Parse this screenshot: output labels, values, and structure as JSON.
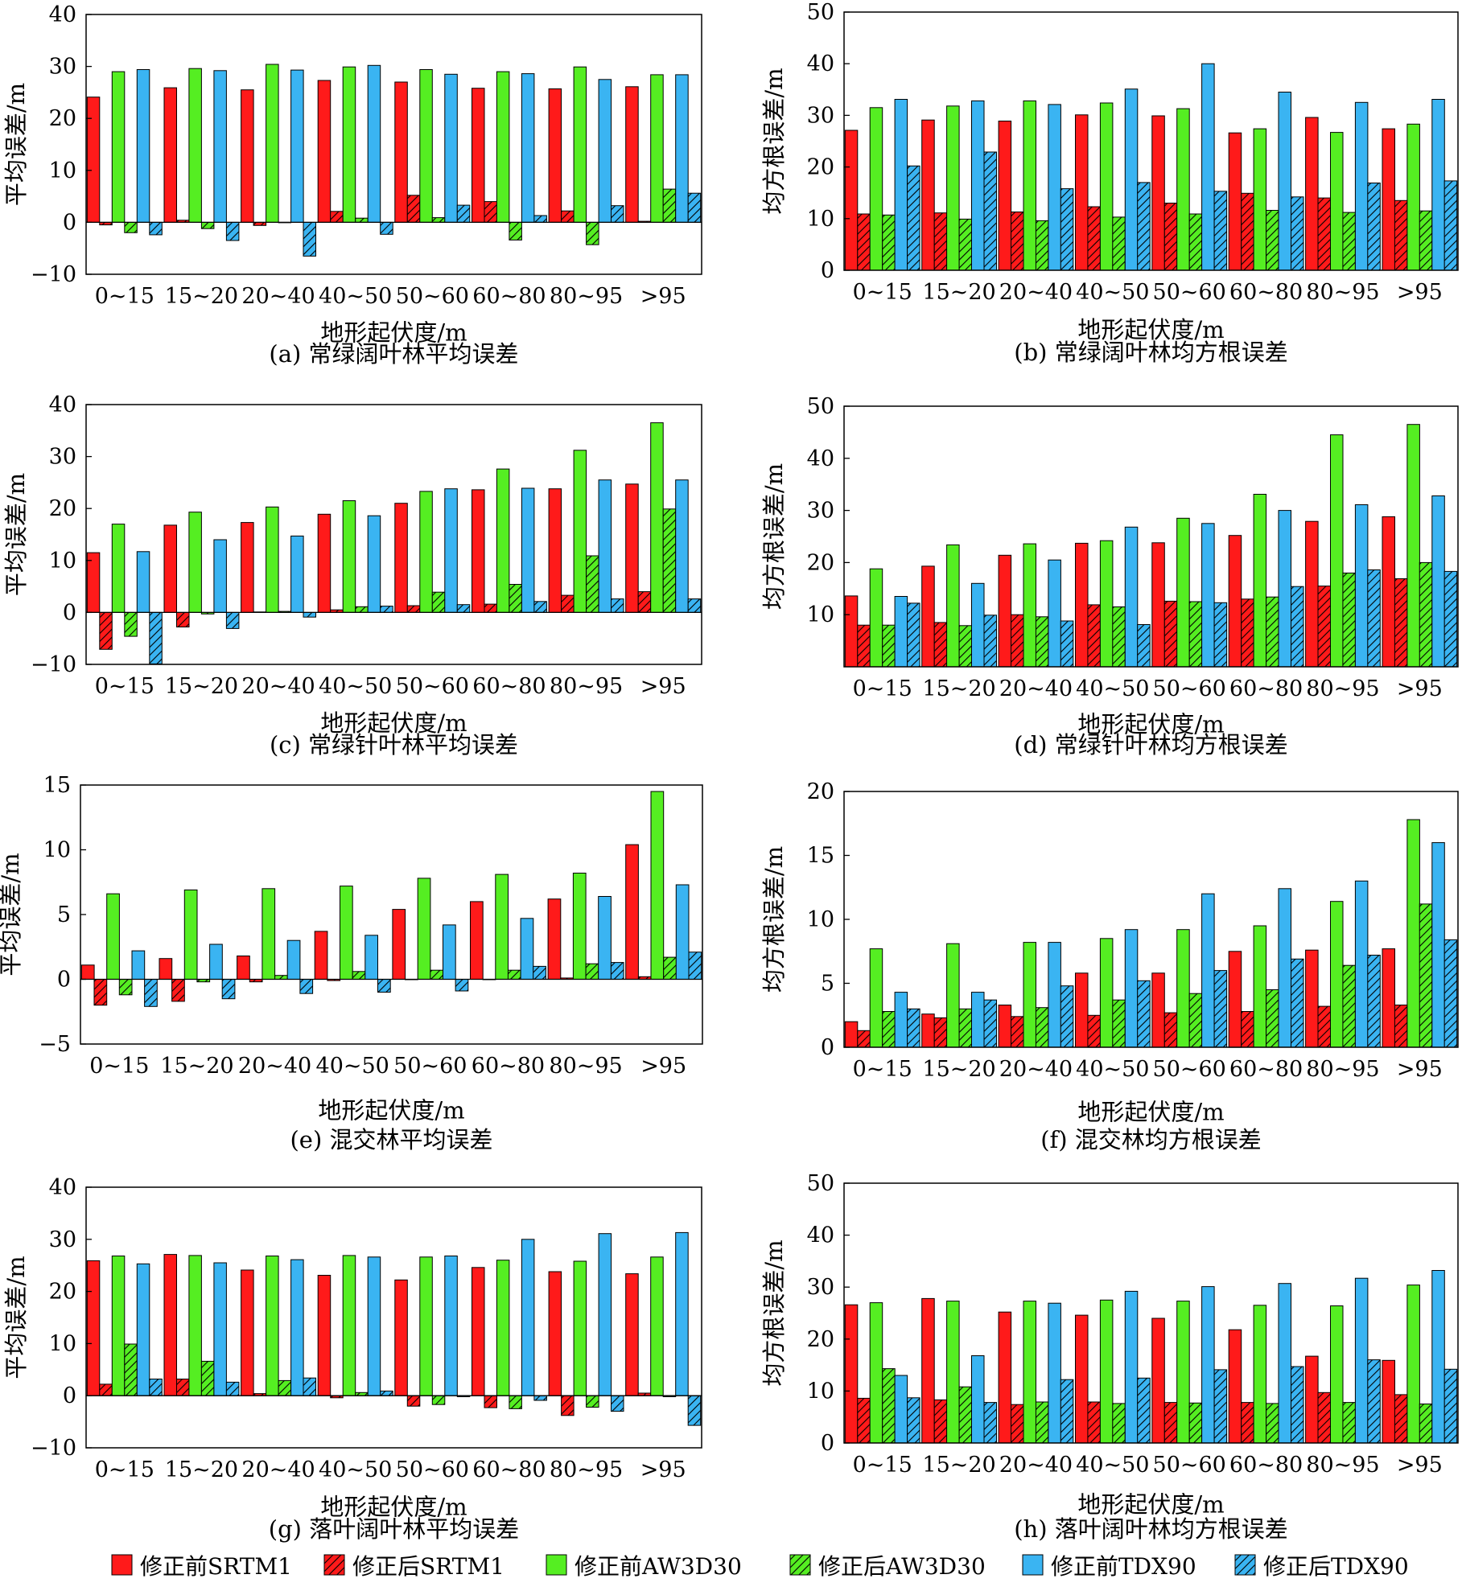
{
  "colors": {
    "srtm": "#ff1a1a",
    "aw3d": "#55ee22",
    "tdx": "#3ab4f2",
    "axis": "#000000"
  },
  "legend": [
    {
      "label": "修正前SRTM1",
      "color": "#ff1a1a",
      "hatched": false
    },
    {
      "label": "修正后SRTM1",
      "color": "#ff1a1a",
      "hatched": true
    },
    {
      "label": "修正前AW3D30",
      "color": "#55ee22",
      "hatched": false
    },
    {
      "label": "修正后AW3D30",
      "color": "#55ee22",
      "hatched": true
    },
    {
      "label": "修正前TDX90",
      "color": "#3ab4f2",
      "hatched": false
    },
    {
      "label": "修正后TDX90",
      "color": "#3ab4f2",
      "hatched": true
    }
  ],
  "chart_data": [
    {
      "type": "bar",
      "caption": "(a) 常绿阔叶林平均误差",
      "xlabel": "地形起伏度/m",
      "ylabel": "平均误差/m",
      "ylim": [
        -10,
        40
      ],
      "yticks": [
        -10,
        0,
        10,
        20,
        30,
        40
      ],
      "categories": [
        "0~15",
        "15~20",
        "20~40",
        "40~50",
        "50~60",
        "60~80",
        "80~95",
        ">95"
      ],
      "series": [
        {
          "name": "修正前SRTM1",
          "values": [
            24.1,
            25.9,
            25.5,
            27.3,
            27.0,
            25.8,
            25.7,
            26.1
          ]
        },
        {
          "name": "修正后SRTM1",
          "values": [
            -0.5,
            0.4,
            -0.6,
            2.1,
            5.2,
            4.0,
            2.2,
            0.2
          ]
        },
        {
          "name": "修正前AW3D30",
          "values": [
            29.0,
            29.6,
            30.4,
            29.9,
            29.4,
            29.0,
            29.9,
            28.4
          ]
        },
        {
          "name": "修正后AW3D30",
          "values": [
            -2.0,
            -1.2,
            0.0,
            0.8,
            0.9,
            -3.4,
            -4.3,
            6.4
          ]
        },
        {
          "name": "修正前TDX90",
          "values": [
            29.4,
            29.2,
            29.3,
            30.2,
            28.5,
            28.6,
            27.5,
            28.4
          ]
        },
        {
          "name": "修正后TDX90",
          "values": [
            -2.4,
            -3.5,
            -6.5,
            -2.3,
            3.3,
            1.3,
            3.2,
            5.6
          ]
        }
      ]
    },
    {
      "type": "bar",
      "caption": "(b) 常绿阔叶林均方根误差",
      "xlabel": "地形起伏度/m",
      "ylabel": "均方根误差/m",
      "ylim": [
        0,
        50
      ],
      "yticks": [
        0,
        10,
        20,
        30,
        40,
        50
      ],
      "categories": [
        "0~15",
        "15~20",
        "20~40",
        "40~50",
        "50~60",
        "60~80",
        "80~95",
        ">95"
      ],
      "series": [
        {
          "name": "修正前SRTM1",
          "values": [
            27.1,
            29.1,
            28.9,
            30.1,
            29.9,
            26.6,
            29.6,
            27.4
          ]
        },
        {
          "name": "修正后SRTM1",
          "values": [
            10.9,
            11.1,
            11.3,
            12.3,
            13.0,
            14.9,
            14.0,
            13.5
          ]
        },
        {
          "name": "修正前AW3D30",
          "values": [
            31.5,
            31.8,
            32.8,
            32.4,
            31.3,
            27.4,
            26.7,
            28.3
          ]
        },
        {
          "name": "修正后AW3D30",
          "values": [
            10.7,
            9.9,
            9.6,
            10.3,
            10.9,
            11.6,
            11.2,
            11.5
          ]
        },
        {
          "name": "修正前TDX90",
          "values": [
            33.1,
            32.8,
            32.1,
            35.1,
            40.0,
            34.5,
            32.5,
            33.1
          ]
        },
        {
          "name": "修正后TDX90",
          "values": [
            20.2,
            22.9,
            15.8,
            17.0,
            15.3,
            14.2,
            16.9,
            17.3
          ]
        }
      ]
    },
    {
      "type": "bar",
      "caption": "(c) 常绿针叶林平均误差",
      "xlabel": "地形起伏度/m",
      "ylabel": "平均误差/m",
      "ylim": [
        -10,
        40
      ],
      "yticks": [
        -10,
        0,
        10,
        20,
        30,
        40
      ],
      "categories": [
        "0~15",
        "15~20",
        "20~40",
        "40~50",
        "50~60",
        "60~80",
        "80~95",
        ">95"
      ],
      "series": [
        {
          "name": "修正前SRTM1",
          "values": [
            11.5,
            16.8,
            17.3,
            18.9,
            21.0,
            23.6,
            23.8,
            24.7
          ]
        },
        {
          "name": "修正后SRTM1",
          "values": [
            -7.1,
            -2.8,
            0.1,
            0.5,
            1.3,
            1.6,
            3.3,
            4.0
          ]
        },
        {
          "name": "修正前AW3D30",
          "values": [
            17.0,
            19.3,
            20.3,
            21.5,
            23.3,
            27.6,
            31.2,
            36.5
          ]
        },
        {
          "name": "修正后AW3D30",
          "values": [
            -4.6,
            -0.3,
            0.2,
            1.1,
            3.9,
            5.4,
            10.9,
            19.9
          ]
        },
        {
          "name": "修正前TDX90",
          "values": [
            11.7,
            14.0,
            14.7,
            18.6,
            23.8,
            23.9,
            25.5,
            25.5
          ]
        },
        {
          "name": "修正后TDX90",
          "values": [
            -9.9,
            -3.1,
            -0.9,
            1.2,
            1.5,
            2.1,
            2.6,
            2.6
          ]
        }
      ]
    },
    {
      "type": "bar",
      "caption": "(d) 常绿针叶林均方根误差",
      "xlabel": "地形起伏度/m",
      "ylabel": "均方根误差/m",
      "ylim": [
        0,
        50
      ],
      "yticks": [
        10,
        20,
        30,
        40,
        50
      ],
      "categories": [
        "0~15",
        "15~20",
        "20~40",
        "40~50",
        "50~60",
        "60~80",
        "80~95",
        ">95"
      ],
      "series": [
        {
          "name": "修正前SRTM1",
          "values": [
            13.6,
            19.3,
            21.4,
            23.7,
            23.8,
            25.2,
            27.9,
            28.8
          ]
        },
        {
          "name": "修正后SRTM1",
          "values": [
            8.0,
            8.5,
            10.0,
            11.9,
            12.6,
            13.0,
            15.5,
            16.9
          ]
        },
        {
          "name": "修正前AW3D30",
          "values": [
            18.8,
            23.4,
            23.6,
            24.2,
            28.5,
            33.1,
            44.5,
            46.5
          ]
        },
        {
          "name": "修正后AW3D30",
          "values": [
            8.0,
            7.9,
            9.6,
            11.5,
            12.5,
            13.4,
            18.0,
            20.0
          ]
        },
        {
          "name": "修正前TDX90",
          "values": [
            13.5,
            16.0,
            20.5,
            26.8,
            27.5,
            30.0,
            31.1,
            32.8
          ]
        },
        {
          "name": "修正后TDX90",
          "values": [
            12.2,
            9.9,
            8.8,
            8.1,
            12.3,
            15.4,
            18.6,
            18.3
          ]
        }
      ]
    },
    {
      "type": "bar",
      "caption": "(e) 混交林平均误差",
      "xlabel": "地形起伏度/m",
      "ylabel": "平均误差/m",
      "ylim": [
        -5,
        15
      ],
      "yticks": [
        -5,
        0,
        5,
        10,
        15
      ],
      "categories": [
        "0~15",
        "15~20",
        "20~40",
        "40~50",
        "50~60",
        "60~80",
        "80~95",
        ">95"
      ],
      "series": [
        {
          "name": "修正前SRTM1",
          "values": [
            1.1,
            1.6,
            1.8,
            3.7,
            5.4,
            6.0,
            6.2,
            10.4
          ]
        },
        {
          "name": "修正后SRTM1",
          "values": [
            -2.0,
            -1.7,
            -0.2,
            -0.1,
            0.0,
            0.0,
            0.1,
            0.2
          ]
        },
        {
          "name": "修正前AW3D30",
          "values": [
            6.6,
            6.9,
            7.0,
            7.2,
            7.8,
            8.1,
            8.2,
            14.5
          ]
        },
        {
          "name": "修正后AW3D30",
          "values": [
            -1.2,
            -0.2,
            0.3,
            0.6,
            0.7,
            0.7,
            1.2,
            1.7
          ]
        },
        {
          "name": "修正前TDX90",
          "values": [
            2.2,
            2.7,
            3.0,
            3.4,
            4.2,
            4.7,
            6.4,
            7.3
          ]
        },
        {
          "name": "修正后TDX90",
          "values": [
            -2.1,
            -1.5,
            -1.1,
            -1.0,
            -0.9,
            1.0,
            1.3,
            2.1
          ]
        }
      ]
    },
    {
      "type": "bar",
      "caption": "(f) 混交林均方根误差",
      "xlabel": "地形起伏度/m",
      "ylabel": "均方根误差/m",
      "ylim": [
        0,
        20
      ],
      "yticks": [
        0,
        5,
        10,
        15,
        20
      ],
      "categories": [
        "0~15",
        "15~20",
        "20~40",
        "40~50",
        "50~60",
        "60~80",
        "80~95",
        ">95"
      ],
      "series": [
        {
          "name": "修正前SRTM1",
          "values": [
            2.0,
            2.6,
            3.3,
            5.8,
            5.8,
            7.5,
            7.6,
            7.7
          ]
        },
        {
          "name": "修正后SRTM1",
          "values": [
            1.3,
            2.3,
            2.4,
            2.5,
            2.7,
            2.8,
            3.2,
            3.3
          ]
        },
        {
          "name": "修正前AW3D30",
          "values": [
            7.7,
            8.1,
            8.2,
            8.5,
            9.2,
            9.5,
            11.4,
            17.8
          ]
        },
        {
          "name": "修正后AW3D30",
          "values": [
            2.8,
            3.0,
            3.1,
            3.7,
            4.2,
            4.5,
            6.4,
            11.2
          ]
        },
        {
          "name": "修正前TDX90",
          "values": [
            4.3,
            4.3,
            8.2,
            9.2,
            12.0,
            12.4,
            13.0,
            16.0
          ]
        },
        {
          "name": "修正后TDX90",
          "values": [
            3.0,
            3.7,
            4.8,
            5.2,
            6.0,
            6.9,
            7.2,
            8.4
          ]
        }
      ]
    },
    {
      "type": "bar",
      "caption": "(g) 落叶阔叶林平均误差",
      "xlabel": "地形起伏度/m",
      "ylabel": "平均误差/m",
      "ylim": [
        -10,
        40
      ],
      "yticks": [
        -10,
        0,
        10,
        20,
        30,
        40
      ],
      "categories": [
        "0~15",
        "15~20",
        "20~40",
        "40~50",
        "50~60",
        "60~80",
        "80~95",
        ">95"
      ],
      "series": [
        {
          "name": "修正前SRTM1",
          "values": [
            25.9,
            27.1,
            24.1,
            23.1,
            22.2,
            24.6,
            23.8,
            23.4
          ]
        },
        {
          "name": "修正后SRTM1",
          "values": [
            2.2,
            3.2,
            0.4,
            -0.4,
            -2.0,
            -2.3,
            -3.8,
            0.5
          ]
        },
        {
          "name": "修正前AW3D30",
          "values": [
            26.8,
            26.9,
            26.8,
            26.9,
            26.6,
            26.0,
            25.8,
            26.6
          ]
        },
        {
          "name": "修正后AW3D30",
          "values": [
            9.9,
            6.6,
            2.9,
            0.6,
            -1.7,
            -2.5,
            -2.2,
            -0.2
          ]
        },
        {
          "name": "修正前TDX90",
          "values": [
            25.3,
            25.5,
            26.1,
            26.6,
            26.8,
            30.0,
            31.1,
            31.3
          ]
        },
        {
          "name": "修正后TDX90",
          "values": [
            3.2,
            2.6,
            3.4,
            0.9,
            -0.2,
            -0.9,
            -3.0,
            -5.7
          ]
        }
      ]
    },
    {
      "type": "bar",
      "caption": "(h) 落叶阔叶林均方根误差",
      "xlabel": "地形起伏度/m",
      "ylabel": "均方根误差/m",
      "ylim": [
        0,
        50
      ],
      "yticks": [
        0,
        10,
        20,
        30,
        40,
        50
      ],
      "categories": [
        "0~15",
        "15~20",
        "20~40",
        "40~50",
        "50~60",
        "60~80",
        "80~95",
        ">95"
      ],
      "series": [
        {
          "name": "修正前SRTM1",
          "values": [
            26.6,
            27.8,
            25.2,
            24.6,
            24.0,
            21.8,
            16.7,
            15.9
          ]
        },
        {
          "name": "修正后SRTM1",
          "values": [
            8.6,
            8.3,
            7.4,
            7.9,
            7.8,
            7.8,
            9.7,
            9.3
          ]
        },
        {
          "name": "修正前AW3D30",
          "values": [
            27.0,
            27.3,
            27.3,
            27.5,
            27.3,
            26.5,
            26.4,
            30.4
          ]
        },
        {
          "name": "修正后AW3D30",
          "values": [
            14.3,
            10.8,
            7.9,
            7.6,
            7.7,
            7.6,
            7.8,
            7.5
          ]
        },
        {
          "name": "修正前TDX90",
          "values": [
            13.0,
            16.8,
            26.9,
            29.2,
            30.1,
            30.7,
            31.7,
            33.2
          ]
        },
        {
          "name": "修正后TDX90",
          "values": [
            8.7,
            7.8,
            12.2,
            12.5,
            14.1,
            14.7,
            16.0,
            14.2
          ]
        }
      ]
    }
  ]
}
